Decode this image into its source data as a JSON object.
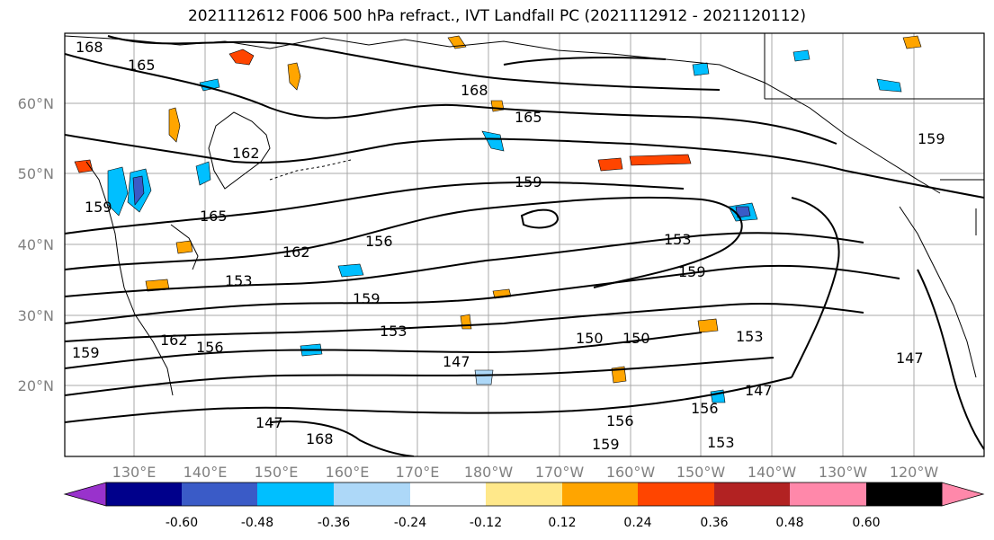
{
  "title": "2021112612 F006 500 hPa refract., IVT Landfall PC (2021112912 - 2021120112)",
  "lat_labels": [
    "60°N",
    "50°N",
    "40°N",
    "30°N",
    "20°N"
  ],
  "lon_labels": [
    "130°E",
    "140°E",
    "150°E",
    "160°E",
    "170°E",
    "180°W",
    "170°W",
    "160°W",
    "150°W",
    "140°W",
    "130°W",
    "120°W"
  ],
  "colorbar": {
    "colors": [
      "#9932cc",
      "#00008b",
      "#3a5bc7",
      "#00bfff",
      "#add8f8",
      "#ffffff",
      "#ffe88a",
      "#ffa500",
      "#ff4500",
      "#b22222",
      "#ff88aa"
    ],
    "tick_labels": [
      "-0.60",
      "-0.48",
      "-0.36",
      "-0.24",
      "-0.12",
      "0.12",
      "0.24",
      "0.36",
      "0.48",
      "0.60"
    ]
  },
  "contour_labels": [
    "168",
    "165",
    "168",
    "165",
    "162",
    "159",
    "165",
    "159",
    "162",
    "156",
    "153",
    "159",
    "153",
    "159",
    "153",
    "150",
    "150",
    "153",
    "147",
    "162",
    "156",
    "159",
    "147",
    "156",
    "153",
    "159",
    "147",
    "147",
    "156",
    "159",
    "168"
  ]
}
